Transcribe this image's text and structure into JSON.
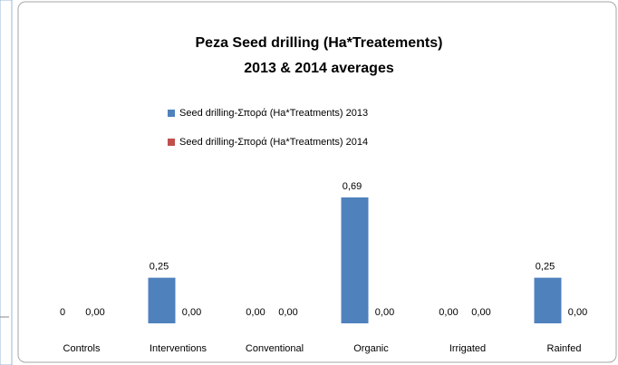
{
  "chart_data": {
    "type": "bar",
    "title": [
      "Peza Seed drilling (Ha*Treatements)",
      "2013 & 2014 averages"
    ],
    "categories": [
      "Controls",
      "Interventions",
      "Conventional",
      "Organic",
      "Irrigated",
      "Rainfed"
    ],
    "series": [
      {
        "name": "Seed drilling-Σπορά (Ha*Treatments) 2013",
        "color": "#4f81bd",
        "values": [
          0,
          0.25,
          0,
          0.69,
          0,
          0.25
        ],
        "value_labels": [
          "0",
          "0,25",
          "0,00",
          "0,69",
          "0,00",
          "0,25"
        ]
      },
      {
        "name": "Seed drilling-Σπορά (Ha*Treatments) 2014",
        "color": "#c0504d",
        "values": [
          0,
          0,
          0,
          0,
          0,
          0
        ],
        "value_labels": [
          "0,00",
          "0,00",
          "0,00",
          "0,00",
          "0,00",
          "0,00"
        ]
      }
    ]
  }
}
